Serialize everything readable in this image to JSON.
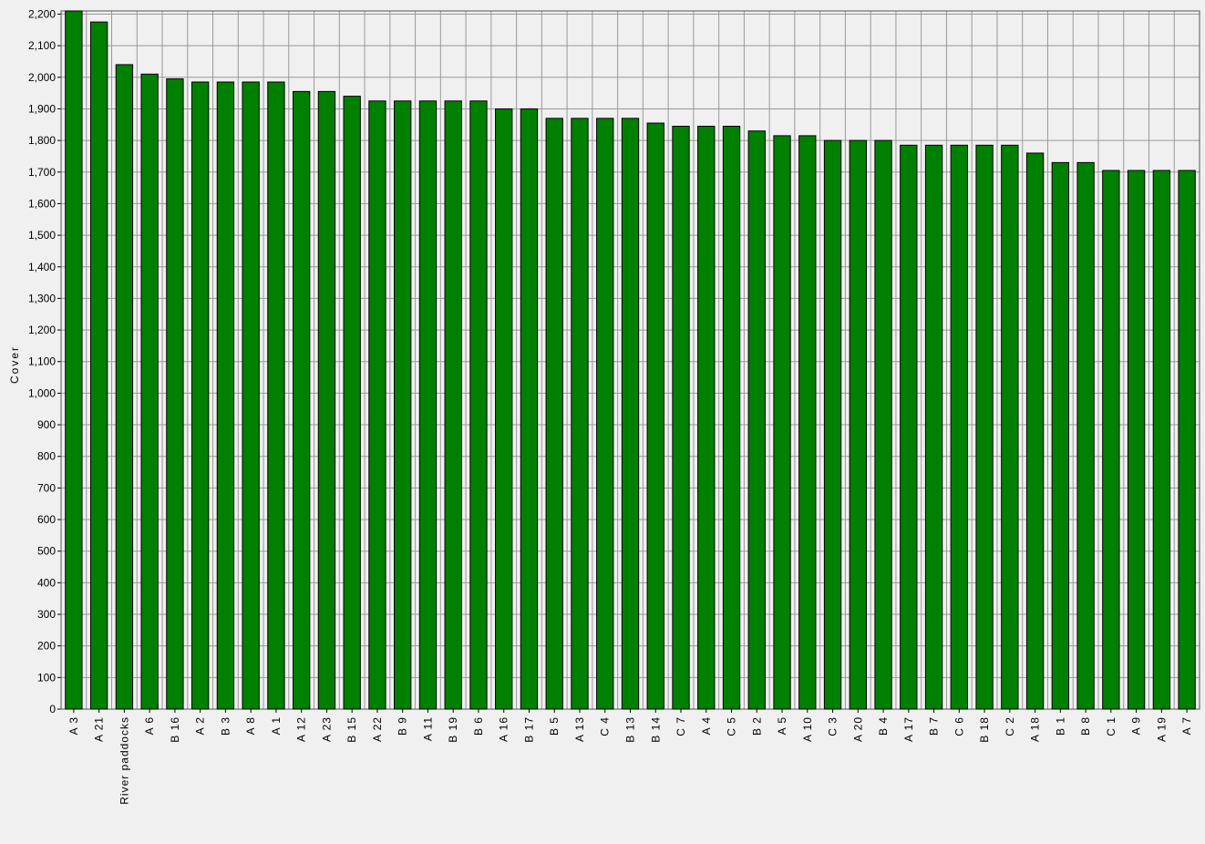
{
  "chart_data": {
    "type": "bar",
    "y_label": "Cover",
    "categories": [
      "A 3",
      "A 21",
      "River paddocks",
      "A 6",
      "B 16",
      "A 2",
      "B 3",
      "A 8",
      "A 1",
      "A 12",
      "A 23",
      "B 15",
      "A 22",
      "B 9",
      "A 11",
      "B 19",
      "B 6",
      "A 16",
      "B 17",
      "B 5",
      "A 13",
      "C 4",
      "B 13",
      "B 14",
      "C 7",
      "A 4",
      "C 5",
      "B 2",
      "A 5",
      "A 10",
      "C 3",
      "A 20",
      "B 4",
      "A 17",
      "B 7",
      "C 6",
      "B 18",
      "C 2",
      "A 18",
      "B 1",
      "B 8",
      "C 1",
      "A 9",
      "A 19",
      "A 7"
    ],
    "values": [
      2210,
      2175,
      2040,
      2010,
      1995,
      1985,
      1985,
      1985,
      1985,
      1955,
      1955,
      1940,
      1925,
      1925,
      1925,
      1925,
      1925,
      1900,
      1900,
      1870,
      1870,
      1870,
      1870,
      1855,
      1845,
      1845,
      1845,
      1830,
      1815,
      1815,
      1800,
      1800,
      1800,
      1785,
      1785,
      1785,
      1785,
      1785,
      1760,
      1730,
      1730,
      1705,
      1705,
      1705,
      1705
    ],
    "color": "#008000",
    "ylim": [
      0,
      2210
    ],
    "yticks": [
      0,
      100,
      200,
      300,
      400,
      500,
      600,
      700,
      800,
      900,
      {
        "value": 1000,
        "label": "1,000"
      },
      {
        "value": 1100,
        "label": "1,100"
      },
      {
        "value": 1200,
        "label": "1,200"
      },
      {
        "value": 1300,
        "label": "1,300"
      },
      {
        "value": 1400,
        "label": "1,400"
      },
      {
        "value": 1500,
        "label": "1,500"
      },
      {
        "value": 1600,
        "label": "1,600"
      },
      {
        "value": 1700,
        "label": "1,700"
      },
      {
        "value": 1800,
        "label": "1,800"
      },
      {
        "value": 1900,
        "label": "1,900"
      },
      {
        "value": 2000,
        "label": "2,000"
      },
      {
        "value": 2100,
        "label": "2,100"
      },
      {
        "value": 2200,
        "label": "2,200"
      }
    ],
    "grid": true
  }
}
